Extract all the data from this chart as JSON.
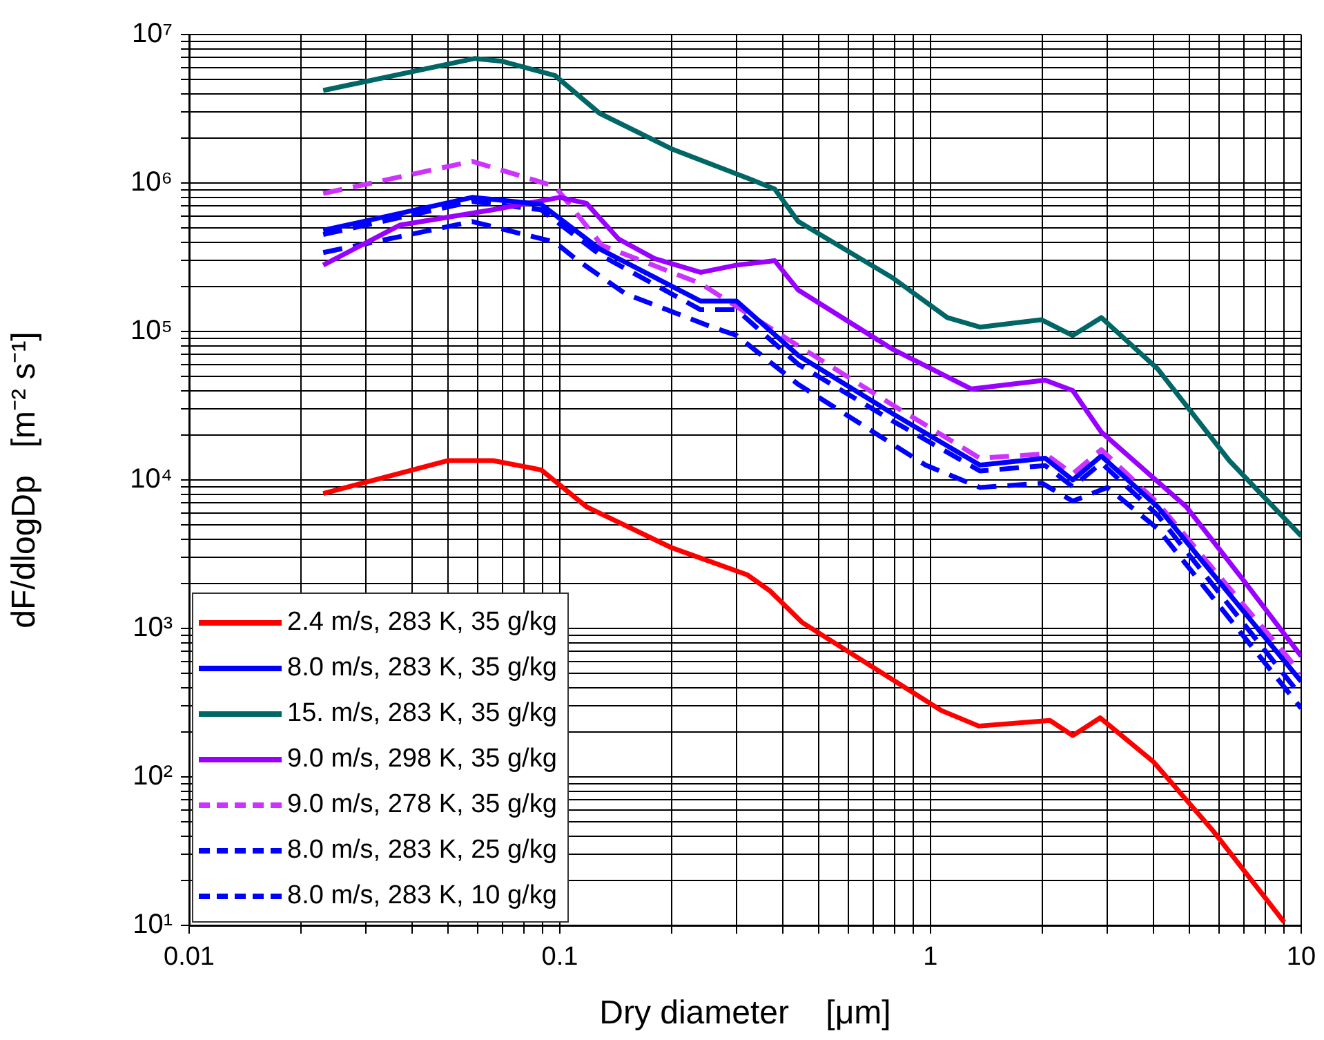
{
  "chart_data": {
    "type": "line",
    "xlabel": "Dry diameter    [μm]",
    "ylabel": "dF/dlogDp   [m⁻² s⁻¹]",
    "log": "xy",
    "grid": true,
    "legend": "bottom left",
    "marker": "none",
    "xlim": [
      0.01,
      10
    ],
    "ylim": [
      10,
      10000000
    ],
    "xticks": [
      0.01,
      {
        "value": 0.02,
        "label": null
      },
      {
        "value": 0.03,
        "label": null
      },
      {
        "value": 0.04,
        "label": null
      },
      {
        "value": 0.05,
        "label": null
      },
      {
        "value": 0.06,
        "label": null
      },
      {
        "value": 0.07,
        "label": null
      },
      {
        "value": 0.08,
        "label": null
      },
      {
        "value": 0.09,
        "label": null
      },
      0.1,
      {
        "value": 0.2,
        "label": null
      },
      {
        "value": 0.3,
        "label": null
      },
      {
        "value": 0.4,
        "label": null
      },
      {
        "value": 0.5,
        "label": null
      },
      {
        "value": 0.6,
        "label": null
      },
      {
        "value": 0.7,
        "label": null
      },
      {
        "value": 0.8,
        "label": null
      },
      {
        "value": 0.9,
        "label": null
      },
      1,
      {
        "value": 2,
        "label": null
      },
      {
        "value": 3,
        "label": null
      },
      {
        "value": 4,
        "label": null
      },
      {
        "value": 5,
        "label": null
      },
      {
        "value": 6,
        "label": null
      },
      {
        "value": 7,
        "label": null
      },
      {
        "value": 8,
        "label": null
      },
      {
        "value": 9,
        "label": null
      },
      10
    ],
    "yticks": [
      {
        "value": 10,
        "label": "10¹"
      },
      {
        "value": 20,
        "label": null
      },
      {
        "value": 30,
        "label": null
      },
      {
        "value": 40,
        "label": null
      },
      {
        "value": 50,
        "label": null
      },
      {
        "value": 60,
        "label": null
      },
      {
        "value": 70,
        "label": null
      },
      {
        "value": 80,
        "label": null
      },
      {
        "value": 90,
        "label": null
      },
      {
        "value": 100,
        "label": "10²"
      },
      {
        "value": 200,
        "label": null
      },
      {
        "value": 300,
        "label": null
      },
      {
        "value": 400,
        "label": null
      },
      {
        "value": 500,
        "label": null
      },
      {
        "value": 600,
        "label": null
      },
      {
        "value": 700,
        "label": null
      },
      {
        "value": 800,
        "label": null
      },
      {
        "value": 900,
        "label": null
      },
      {
        "value": 1000,
        "label": "10³"
      },
      {
        "value": 2000,
        "label": null
      },
      {
        "value": 3000,
        "label": null
      },
      {
        "value": 4000,
        "label": null
      },
      {
        "value": 5000,
        "label": null
      },
      {
        "value": 6000,
        "label": null
      },
      {
        "value": 7000,
        "label": null
      },
      {
        "value": 8000,
        "label": null
      },
      {
        "value": 9000,
        "label": null
      },
      {
        "value": 10000,
        "label": "10⁴"
      },
      {
        "value": 20000,
        "label": null
      },
      {
        "value": 30000,
        "label": null
      },
      {
        "value": 40000,
        "label": null
      },
      {
        "value": 50000,
        "label": null
      },
      {
        "value": 60000,
        "label": null
      },
      {
        "value": 70000,
        "label": null
      },
      {
        "value": 80000,
        "label": null
      },
      {
        "value": 90000,
        "label": null
      },
      {
        "value": 100000,
        "label": "10⁵"
      },
      {
        "value": 200000,
        "label": null
      },
      {
        "value": 300000,
        "label": null
      },
      {
        "value": 400000,
        "label": null
      },
      {
        "value": 500000,
        "label": null
      },
      {
        "value": 600000,
        "label": null
      },
      {
        "value": 700000,
        "label": null
      },
      {
        "value": 800000,
        "label": null
      },
      {
        "value": 900000,
        "label": null
      },
      {
        "value": 1000000,
        "label": "10⁶"
      },
      {
        "value": 2000000,
        "label": null
      },
      {
        "value": 3000000,
        "label": null
      },
      {
        "value": 4000000,
        "label": null
      },
      {
        "value": 5000000,
        "label": null
      },
      {
        "value": 6000000,
        "label": null
      },
      {
        "value": 7000000,
        "label": null
      },
      {
        "value": 8000000,
        "label": null
      },
      {
        "value": 9000000,
        "label": null
      },
      {
        "value": 10000000,
        "label": "10⁷"
      }
    ],
    "series": [
      {
        "name": "2.4 m/s, 283 K, 35 g/kg",
        "color": "#ff0000",
        "line_style": "solid",
        "x": [
          0.023,
          0.05,
          0.066,
          0.089,
          0.118,
          0.2,
          0.32,
          0.37,
          0.45,
          1.07,
          1.35,
          2.1,
          2.42,
          2.87,
          4.0,
          5.8,
          9.0
        ],
        "values": [
          8100,
          13500,
          13500,
          11700,
          6600,
          3500,
          2300,
          1780,
          1100,
          280,
          220,
          240,
          190,
          250,
          126,
          43,
          10.5
        ]
      },
      {
        "name": "8.0 m/s, 283 K, 35 g/kg",
        "color": "#0000ff",
        "line_style": "solid",
        "x": [
          0.023,
          0.058,
          0.089,
          0.128,
          0.24,
          0.3,
          0.44,
          0.79,
          1.36,
          2.04,
          2.42,
          2.89,
          4.1,
          10
        ],
        "values": [
          480000,
          800000,
          720000,
          360000,
          160000,
          160000,
          69000,
          28000,
          12600,
          14000,
          10000,
          14500,
          6600,
          440
        ]
      },
      {
        "name": "15. m/s, 283 K, 35 g/kg",
        "color": "#006666",
        "line_style": "solid",
        "x": [
          0.023,
          0.059,
          0.07,
          0.097,
          0.128,
          0.2,
          0.33,
          0.38,
          0.44,
          0.79,
          1.11,
          1.36,
          1.99,
          2.42,
          2.89,
          4.1,
          6.4,
          10
        ],
        "values": [
          4200000,
          6900000,
          6600000,
          5300000,
          2950000,
          1700000,
          1050000,
          910000,
          550000,
          230000,
          124000,
          107000,
          120000,
          94000,
          124000,
          56000,
          13500,
          4200
        ]
      },
      {
        "name": "9.0 m/s, 298 K, 35 g/kg",
        "color": "#9900ff",
        "line_style": "solid",
        "x": [
          0.023,
          0.037,
          0.066,
          0.1,
          0.118,
          0.144,
          0.18,
          0.24,
          0.3,
          0.38,
          0.44,
          0.79,
          1.29,
          2.04,
          2.42,
          2.89,
          4.9,
          6.9,
          10
        ],
        "values": [
          280000,
          520000,
          660000,
          800000,
          730000,
          420000,
          310000,
          250000,
          280000,
          300000,
          190000,
          76000,
          41000,
          47000,
          40000,
          21000,
          6600,
          2200,
          650
        ]
      },
      {
        "name": "9.0 m/s, 278 K, 35 g/kg",
        "color": "#cc33ff",
        "line_style": "dashed",
        "x": [
          0.023,
          0.058,
          0.097,
          0.13,
          0.24,
          0.44,
          0.79,
          1.36,
          2.04,
          2.42,
          2.89,
          4.1,
          10
        ],
        "values": [
          850000,
          1400000,
          950000,
          380000,
          210000,
          80000,
          32000,
          14000,
          15000,
          11000,
          16000,
          7000,
          500
        ]
      },
      {
        "name": "8.0 m/s, 283 K, 25 g/kg",
        "color": "#0000ff",
        "line_style": "dashed",
        "x": [
          0.023,
          0.058,
          0.089,
          0.128,
          0.24,
          0.3,
          0.44,
          0.79,
          1.36,
          2.04,
          2.42,
          2.89,
          4.1,
          10
        ],
        "values": [
          450000,
          750000,
          660000,
          330000,
          140000,
          140000,
          60000,
          25000,
          11500,
          12500,
          9000,
          13000,
          5800,
          350
        ]
      },
      {
        "name": "8.0 m/s, 283 K, 10 g/kg",
        "color": "#0000ff",
        "line_style": "dashed",
        "x": [
          0.023,
          0.058,
          0.097,
          0.11,
          0.15,
          0.25,
          0.3,
          0.44,
          0.97,
          1.36,
          2.0,
          2.42,
          3.0,
          4.1,
          10
        ],
        "values": [
          340000,
          550000,
          400000,
          310000,
          180000,
          110000,
          94000,
          44000,
          12600,
          8900,
          9500,
          7200,
          8900,
          4700,
          290
        ]
      }
    ]
  }
}
